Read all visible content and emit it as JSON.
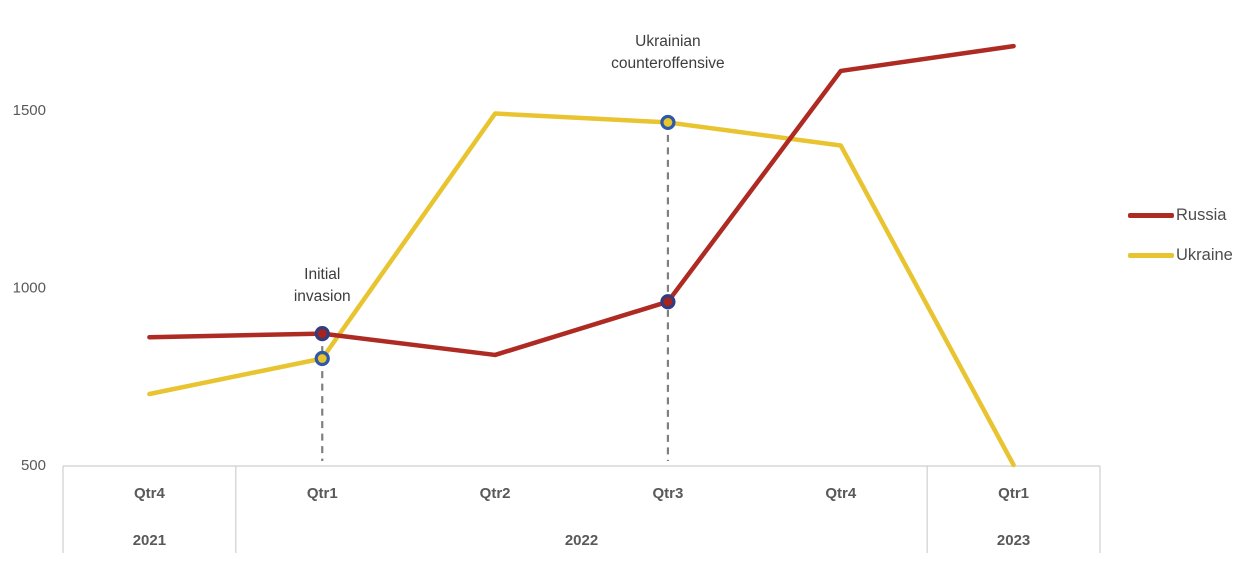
{
  "chart_data": {
    "type": "line",
    "title": "",
    "x_axis": {
      "quarter_labels": [
        "Qtr4",
        "Qtr1",
        "Qtr2",
        "Qtr3",
        "Qtr4",
        "Qtr1"
      ],
      "year_groups": [
        {
          "year": "2021",
          "span": 1
        },
        {
          "year": "2022",
          "span": 4
        },
        {
          "year": "2023",
          "span": 1
        }
      ]
    },
    "y_axis": {
      "min": 500,
      "ticks": [
        500,
        1000,
        1500
      ],
      "grid": false
    },
    "series": [
      {
        "name": "Russia",
        "color": "#ae2b24",
        "marker_fill": "#a8231e",
        "marker_ring": "#343c7e",
        "values": [
          860,
          870,
          810,
          960,
          1610,
          1680
        ]
      },
      {
        "name": "Ukraine",
        "color": "#e9c431",
        "marker_fill": "#e7c52d",
        "marker_ring": "#2f58a6",
        "values": [
          700,
          800,
          1490,
          1465,
          1400,
          500
        ]
      }
    ],
    "annotations": [
      {
        "line1": "Initial",
        "line2": "invasion",
        "x_index": 1,
        "marked_series": [
          "Russia",
          "Ukraine"
        ]
      },
      {
        "line1": "Ukrainian",
        "line2": "counteroffensive",
        "x_index": 3,
        "marked_series": [
          "Russia",
          "Ukraine"
        ]
      }
    ],
    "legend": {
      "position": "right"
    }
  },
  "colors": {
    "axis_text": "#595959",
    "annotation_text": "#3d3d3d",
    "legend_text": "#4d4d4d",
    "table_line": "#cfcfcf",
    "dashed_line": "#7f7f7f",
    "background": "#ffffff"
  }
}
